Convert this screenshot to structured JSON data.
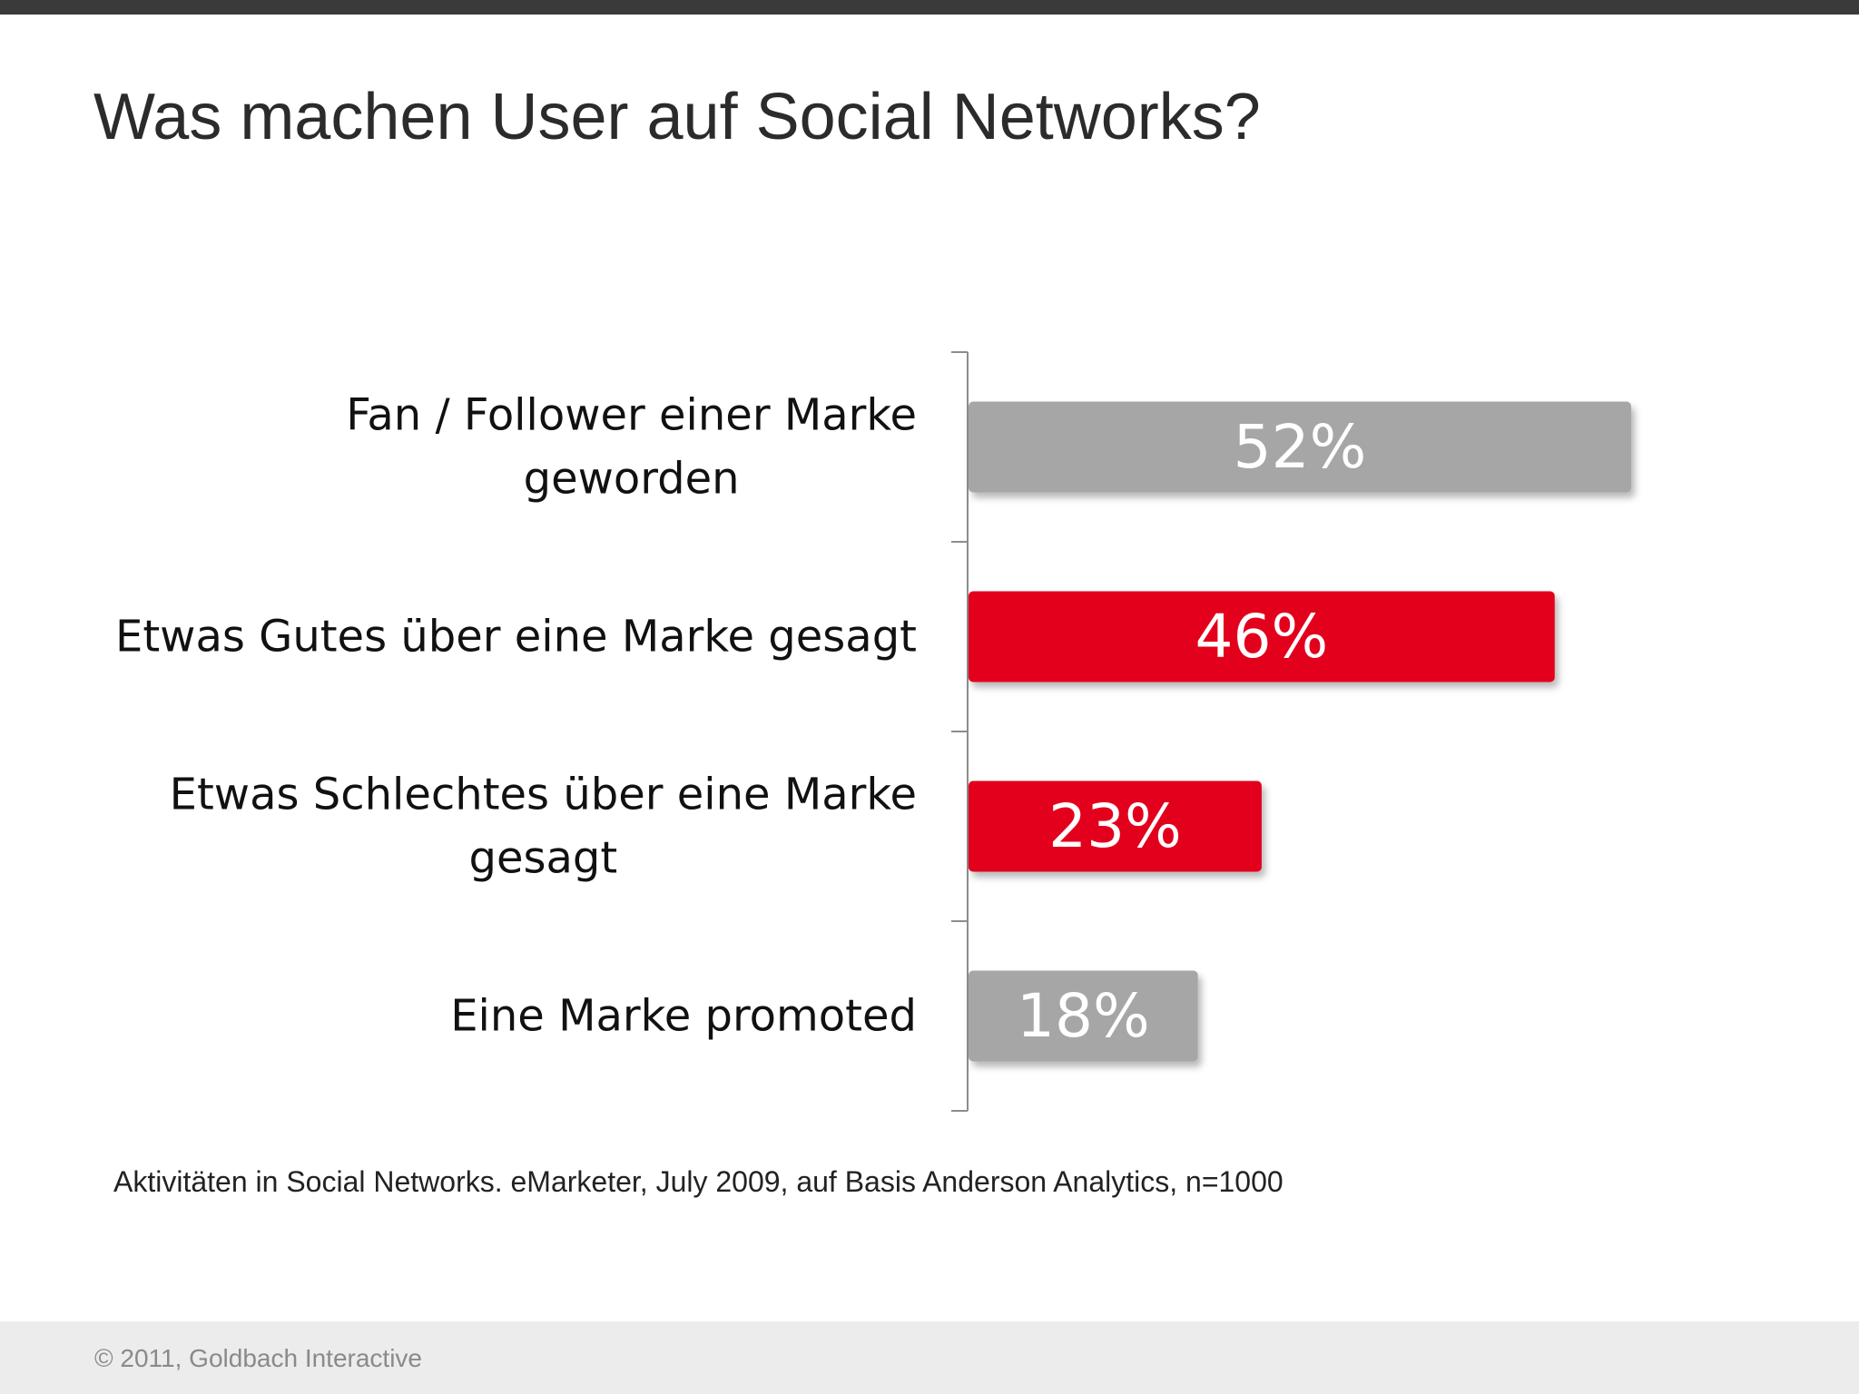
{
  "slide": {
    "title": "Was machen User auf Social Networks?",
    "source_note": "Aktivitäten in Social Networks. eMarketer, July 2009, auf Basis Anderson Analytics, n=1000",
    "copyright": "© 2011, Goldbach Interactive"
  },
  "colors": {
    "gray_bar": "#a6a6a6",
    "red_bar": "#e2001a",
    "axis": "#8c8c8c"
  },
  "chart_data": {
    "type": "bar",
    "orientation": "horizontal",
    "title": "",
    "xlabel": "",
    "ylabel": "",
    "xlim": [
      0,
      100
    ],
    "grid": false,
    "categories": [
      [
        "Fan / Follower einer Marke",
        "geworden"
      ],
      [
        "Etwas Gutes über eine Marke gesagt"
      ],
      [
        "Etwas Schlechtes über eine Marke",
        "gesagt"
      ],
      [
        "Eine Marke promoted"
      ]
    ],
    "values": [
      52,
      46,
      23,
      18
    ],
    "value_labels": [
      "52%",
      "46%",
      "23%",
      "18%"
    ],
    "bar_colors": [
      "gray",
      "red",
      "red",
      "gray"
    ]
  }
}
